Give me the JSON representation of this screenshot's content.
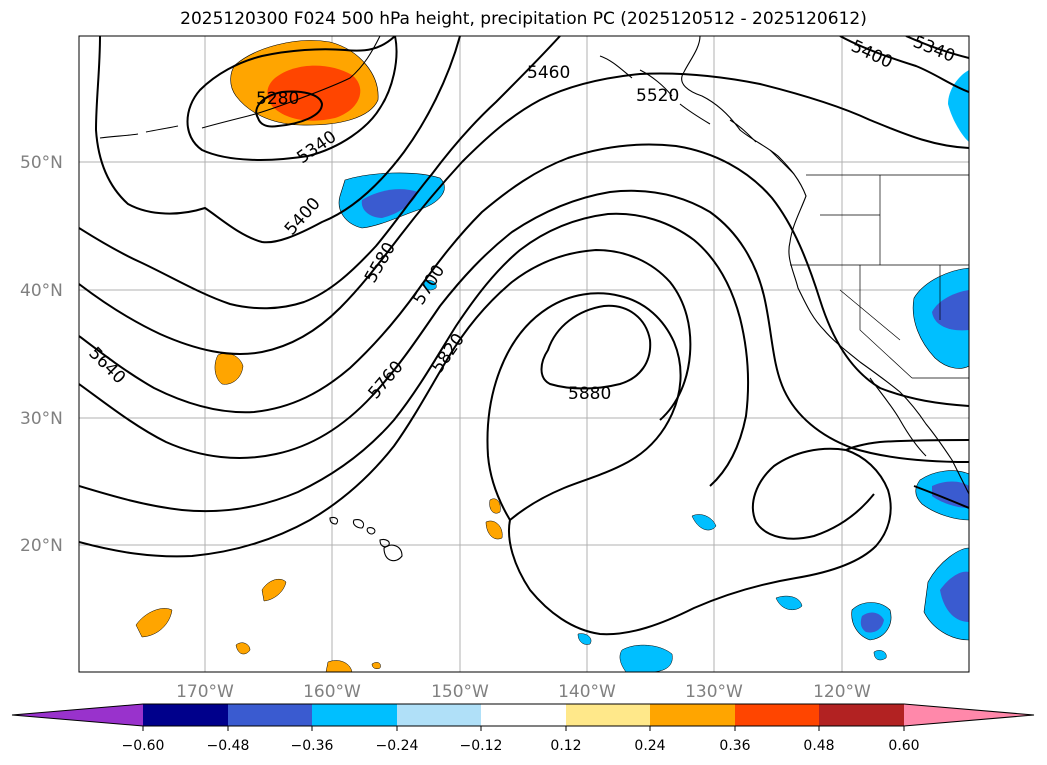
{
  "title": "2025120300 F024 500 hPa height, precipitation PC (2025120512 - 2025120612)",
  "colors": {
    "neg_extend": "#9932cc",
    "neg_060": "#00008b",
    "neg_048": "#3a5bd0",
    "neg_036": "#00bfff",
    "neg_024": "#b0e0f8",
    "pos_024": "#ffe88a",
    "pos_036": "#ffa500",
    "pos_048": "#ff4500",
    "pos_060": "#b22222",
    "pos_extend": "#ff88aa"
  },
  "map": {
    "lat_ticks": [
      "50°N",
      "40°N",
      "30°N",
      "20°N"
    ],
    "lon_ticks": [
      "170°W",
      "160°W",
      "150°W",
      "140°W",
      "130°W",
      "120°W"
    ],
    "contour_labels": [
      "5280",
      "5340",
      "5400",
      "5460",
      "5520",
      "5580",
      "5640",
      "5700",
      "5760",
      "5820",
      "5880",
      "5400",
      "5340"
    ]
  },
  "colorbar": {
    "ticks": [
      "−0.60",
      "−0.48",
      "−0.36",
      "−0.24",
      "−0.12",
      "0.12",
      "0.24",
      "0.36",
      "0.48",
      "0.60"
    ]
  }
}
